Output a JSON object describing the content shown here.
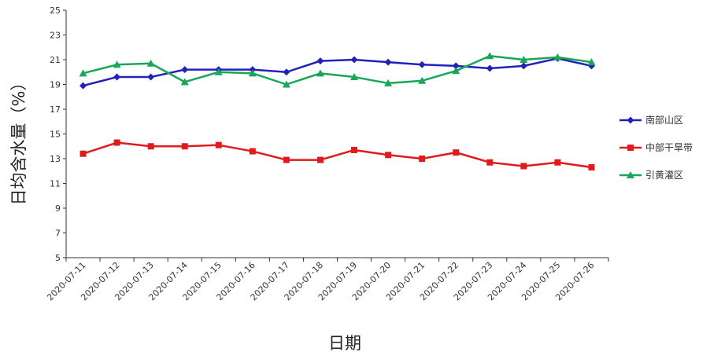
{
  "chart_data": {
    "type": "line",
    "xlabel": "日期",
    "ylabel": "日均含水量（%）",
    "ylim": [
      5,
      25
    ],
    "yticks": [
      5,
      7,
      9,
      11,
      13,
      15,
      17,
      19,
      21,
      23,
      25
    ],
    "categories": [
      "2020-07-11",
      "2020-07-12",
      "2020-07-13",
      "2020-07-14",
      "2020-07-15",
      "2020-07-16",
      "2020-07-17",
      "2020-07-18",
      "2020-07-19",
      "2020-07-20",
      "2020-07-21",
      "2020-07-22",
      "2020-07-23",
      "2020-07-24",
      "2020-07-25",
      "2020-07-26"
    ],
    "legend_position": "right",
    "series": [
      {
        "name": "南部山区",
        "color": "#2222bb",
        "marker": "diamond",
        "values": [
          18.9,
          19.6,
          19.6,
          20.2,
          20.2,
          20.2,
          20.0,
          20.9,
          21.0,
          20.8,
          20.6,
          20.5,
          20.3,
          20.5,
          21.1,
          20.5
        ]
      },
      {
        "name": "中部干旱带",
        "color": "#e11b1b",
        "marker": "square",
        "values": [
          13.4,
          14.3,
          14.0,
          14.0,
          14.1,
          13.6,
          12.9,
          12.9,
          13.7,
          13.3,
          13.0,
          13.5,
          12.7,
          12.4,
          12.7,
          12.3
        ]
      },
      {
        "name": "引黄灌区",
        "color": "#1aa659",
        "marker": "triangle",
        "values": [
          19.9,
          20.6,
          20.7,
          19.2,
          20.0,
          19.9,
          19.0,
          19.9,
          19.6,
          19.1,
          19.3,
          20.1,
          21.3,
          21.0,
          21.2,
          20.8
        ]
      }
    ]
  }
}
